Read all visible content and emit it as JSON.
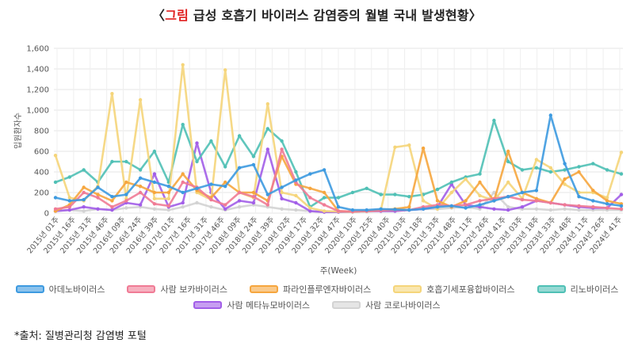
{
  "title_prefix": "〈",
  "title_red": "그림",
  "title_rest": " 급성 호흡기 바이러스 감염증의 월별 국내 발생현황〉",
  "source": "*출처: 질병관리청 감염병 포털",
  "chart_data": {
    "type": "line",
    "xlabel": "주(Week)",
    "ylabel": "입원환자수",
    "ylim": [
      0,
      1600
    ],
    "yticks": [
      "0",
      "200",
      "400",
      "600",
      "800",
      "1,000",
      "1,200",
      "1,400",
      "1,600"
    ],
    "grid": true,
    "legend_position": "bottom",
    "x_tick_labels": [
      "2015년 01주",
      "2015년 16주",
      "2015년 31주",
      "2015년 46주",
      "2016년 09주",
      "2016년 24주",
      "2016년 39주",
      "2017년 01주",
      "2017년 16주",
      "2017년 31주",
      "2017년 46주",
      "2018년 09주",
      "2018년 24주",
      "2018년 39주",
      "2019년 02주",
      "2019년 17주",
      "2019년 32주",
      "2019년 47주",
      "2020년 10주",
      "2020년 25주",
      "2020년 40주",
      "2021년 03주",
      "2021년 18주",
      "2021년 33주",
      "2021년 48주",
      "2022년 11주",
      "2022년 26주",
      "2022년 41주",
      "2023년 03주",
      "2023년 18주",
      "2023년 33주",
      "2023년 48주",
      "2024년 11주",
      "2024년 26주",
      "2024년 41주"
    ],
    "series": [
      {
        "name": "아데노바이러스",
        "color": "#3d9ae0",
        "values": [
          150,
          120,
          130,
          250,
          160,
          180,
          340,
          300,
          260,
          200,
          240,
          280,
          260,
          440,
          470,
          180,
          250,
          320,
          380,
          420,
          60,
          30,
          30,
          40,
          35,
          30,
          40,
          60,
          70,
          50,
          80,
          120,
          160,
          200,
          220,
          950,
          480,
          160,
          120,
          90,
          70
        ]
      },
      {
        "name": "사람 보카바이러스",
        "color": "#f07b95",
        "values": [
          40,
          60,
          200,
          150,
          60,
          120,
          200,
          90,
          70,
          300,
          250,
          130,
          80,
          200,
          160,
          80,
          620,
          300,
          150,
          80,
          20,
          15,
          20,
          25,
          30,
          30,
          60,
          80,
          70,
          80,
          120,
          140,
          160,
          130,
          120,
          100,
          80,
          70,
          60,
          50,
          40
        ]
      },
      {
        "name": "파라인플루엔자바이러스",
        "color": "#f6a63e",
        "values": [
          20,
          80,
          250,
          180,
          120,
          300,
          260,
          200,
          200,
          380,
          220,
          150,
          300,
          200,
          200,
          120,
          550,
          280,
          240,
          200,
          20,
          15,
          20,
          30,
          40,
          60,
          630,
          120,
          60,
          120,
          300,
          120,
          600,
          200,
          140,
          100,
          330,
          400,
          220,
          120,
          90
        ]
      },
      {
        "name": "호흡기세포융합바이러스",
        "color": "#f5d57a",
        "values": [
          560,
          150,
          120,
          260,
          1160,
          140,
          1100,
          140,
          140,
          1440,
          200,
          130,
          1390,
          200,
          150,
          1060,
          200,
          170,
          50,
          20,
          15,
          15,
          20,
          30,
          640,
          660,
          120,
          40,
          200,
          330,
          170,
          120,
          300,
          140,
          520,
          440,
          280,
          200,
          200,
          150,
          590
        ]
      },
      {
        "name": "리노바이러스",
        "color": "#4fc0b5",
        "values": [
          300,
          350,
          420,
          300,
          500,
          500,
          420,
          600,
          300,
          860,
          500,
          700,
          450,
          750,
          550,
          820,
          700,
          400,
          60,
          150,
          150,
          200,
          240,
          180,
          180,
          160,
          180,
          230,
          300,
          350,
          380,
          900,
          500,
          420,
          440,
          400,
          420,
          450,
          480,
          420,
          380
        ]
      },
      {
        "name": "사람 메타뉴모바이러스",
        "color": "#a25ee8",
        "values": [
          20,
          30,
          60,
          40,
          30,
          100,
          80,
          380,
          60,
          100,
          680,
          200,
          40,
          120,
          100,
          620,
          140,
          100,
          20,
          10,
          10,
          15,
          20,
          20,
          20,
          30,
          40,
          60,
          280,
          80,
          60,
          40,
          30,
          60,
          120,
          100,
          80,
          60,
          50,
          50,
          180
        ]
      },
      {
        "name": "사람 코로나바이러스",
        "color": "#d3d3d3",
        "values": [
          20,
          30,
          20,
          40,
          30,
          50,
          60,
          40,
          30,
          60,
          100,
          60,
          30,
          60,
          80,
          60,
          40,
          30,
          20,
          10,
          10,
          10,
          15,
          20,
          20,
          30,
          40,
          40,
          50,
          60,
          40,
          200,
          60,
          40,
          40,
          30,
          40,
          30,
          30,
          30,
          30
        ]
      }
    ]
  }
}
